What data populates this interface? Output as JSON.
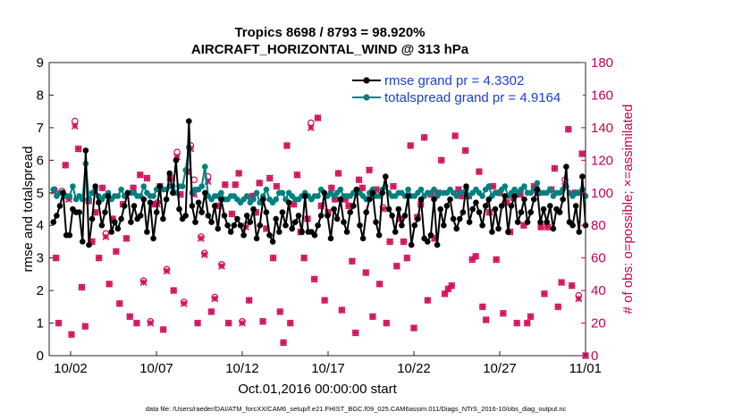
{
  "chart_data": {
    "type": "line",
    "title_line1": "Tropics 8698 / 8793 = 98.920%",
    "title_line2": "AIRCRAFT_HORIZONTAL_WIND @ 313 hPa",
    "xlabel": "Oct.01,2016 00:00:00 start",
    "ylabel_left": "rmse and totalspread",
    "ylabel_right": "# of obs: o=possible; ×=assimilated",
    "footer": "data file: /Users/raeder/DAI/ATM_forcXX/CAM6_setup/f.e21.FHIST_BGC.f09_025.CAM6assim.011/Diags_NTrS_2016-10/obs_diag_output.nc",
    "x_tick_labels": [
      "10/02",
      "10/07",
      "10/12",
      "10/17",
      "10/22",
      "10/27",
      "11/01"
    ],
    "x_tick_days": [
      2,
      7,
      12,
      17,
      22,
      27,
      32
    ],
    "xlim": [
      0.75,
      32.0
    ],
    "ylim_left": [
      0,
      9
    ],
    "yticks_left": [
      "0",
      "1",
      "2",
      "3",
      "4",
      "5",
      "6",
      "7",
      "8",
      "9"
    ],
    "ylim_right": [
      0,
      180
    ],
    "yticks_right": [
      "0",
      "20",
      "40",
      "60",
      "80",
      "100",
      "120",
      "140",
      "160",
      "180"
    ],
    "colors": {
      "rmse": "#000000",
      "spread": "#008080",
      "obs": "#d0105a",
      "legend_text": "#1a3fd6",
      "right_axis": "#c8004f"
    },
    "legend": [
      "rmse grand pr = 4.3302",
      "totalspread grand pr = 4.9164"
    ],
    "series": [
      {
        "name": "rmse",
        "values": [
          4.1,
          4.3,
          4.6,
          5.0,
          3.7,
          3.7,
          4.5,
          4.4,
          4.4,
          3.5,
          6.3,
          3.4,
          4.2,
          5.2,
          4.7,
          4.0,
          4.4,
          4.9,
          3.8,
          4.1,
          3.9,
          4.2,
          4.6,
          5.0,
          4.1,
          4.6,
          4.2,
          4.3,
          4.8,
          3.8,
          4.7,
          3.6,
          4.4,
          5.2,
          4.2,
          4.8,
          5.6,
          5.0,
          6.0,
          4.5,
          4.2,
          4.3,
          7.2,
          4.6,
          4.1,
          4.7,
          4.4,
          5.0,
          4.3,
          4.1,
          4.6,
          3.9,
          4.8,
          4.3,
          4.0,
          3.8,
          4.0,
          4.2,
          4.0,
          3.7,
          4.3,
          4.1,
          4.5,
          3.6,
          4.0,
          4.8,
          4.4,
          3.7,
          3.5,
          4.2,
          3.8,
          4.4,
          4.0,
          4.7,
          3.9,
          4.1,
          4.3,
          3.8,
          4.9,
          3.8,
          3.8,
          3.7,
          4.0,
          4.3,
          5.0,
          4.3,
          3.6,
          4.5,
          4.2,
          4.8,
          4.1,
          3.8,
          4.4,
          4.6,
          5.1,
          4.0,
          3.6,
          4.4,
          4.8,
          5.0,
          4.1,
          3.7,
          5.0,
          5.5,
          4.5,
          4.3,
          3.8,
          4.5,
          4.0,
          4.3,
          4.9,
          3.4,
          4.0,
          4.2,
          4.8,
          3.6,
          3.5,
          3.7,
          4.8,
          3.4,
          4.5,
          4.0,
          4.6,
          4.8,
          4.2,
          3.9,
          4.2,
          4.4,
          5.2,
          4.1,
          4.5,
          4.7,
          4.4,
          4.0,
          4.6,
          4.8,
          3.8,
          4.5,
          3.9,
          4.6,
          4.9,
          3.8,
          4.6,
          4.9,
          4.1,
          4.4,
          4.8,
          4.1,
          4.4,
          4.8,
          5.1,
          4.1,
          4.5,
          4.1,
          4.6,
          3.9,
          4.5,
          4.4,
          4.8,
          5.8,
          4.1,
          4.0,
          4.6,
          3.8,
          5.5,
          4.0
        ]
      },
      {
        "name": "totalspread",
        "values": [
          5.1,
          4.9,
          5.0,
          5.0,
          4.9,
          4.9,
          5.2,
          4.8,
          4.9,
          4.8,
          5.9,
          4.8,
          5.0,
          5.1,
          4.9,
          4.8,
          4.9,
          5.0,
          4.8,
          4.9,
          4.9,
          5.1,
          4.9,
          5.0,
          5.0,
          5.0,
          4.9,
          4.9,
          5.2,
          5.0,
          4.9,
          4.9,
          5.1,
          5.2,
          5.1,
          5.1,
          5.2,
          5.2,
          5.0,
          5.2,
          5.2,
          5.7,
          6.4,
          5.0,
          5.1,
          5.1,
          5.2,
          5.8,
          4.9,
          4.8,
          4.9,
          4.9,
          5.0,
          4.8,
          4.8,
          4.9,
          4.9,
          4.8,
          4.7,
          4.8,
          4.9,
          4.7,
          4.8,
          5.0,
          4.7,
          4.9,
          5.1,
          4.8,
          4.7,
          4.8,
          5.0,
          5.0,
          4.8,
          5.0,
          4.9,
          4.8,
          4.8,
          4.9,
          5.0,
          4.9,
          4.8,
          4.9,
          4.9,
          5.1,
          5.0,
          4.9,
          5.0,
          4.9,
          5.0,
          5.1,
          4.9,
          4.9,
          4.9,
          5.0,
          5.1,
          5.0,
          4.9,
          4.8,
          5.0,
          5.1,
          4.9,
          4.9,
          5.1,
          5.2,
          5.0,
          4.9,
          4.9,
          5.0,
          5.0,
          4.9,
          5.1,
          4.9,
          4.9,
          5.0,
          5.1,
          4.9,
          5.0,
          5.0,
          5.1,
          4.9,
          5.0,
          5.0,
          5.0,
          5.1,
          5.0,
          4.9,
          5.0,
          5.0,
          5.1,
          4.9,
          5.0,
          5.1,
          5.0,
          4.9,
          5.1,
          5.2,
          4.9,
          5.0,
          5.0,
          5.1,
          5.2,
          4.9,
          5.0,
          5.1,
          5.0,
          5.1,
          5.2,
          5.0,
          5.0,
          5.1,
          5.3,
          5.0,
          5.0,
          5.0,
          5.1,
          4.9,
          5.0,
          5.0,
          5.1,
          5.2,
          5.0,
          4.9,
          5.0,
          5.0,
          5.1,
          4.9
        ]
      }
    ],
    "obs_counts": [
      {
        "day": 1.05,
        "o": 102,
        "x": 101
      },
      {
        "day": 1.15,
        "o": 60,
        "x": 60
      },
      {
        "day": 1.3,
        "o": 20,
        "x": 20
      },
      {
        "day": 1.5,
        "o": 101,
        "x": 100
      },
      {
        "day": 1.7,
        "o": 117,
        "x": 117
      },
      {
        "day": 1.9,
        "o": 97,
        "x": 96
      },
      {
        "day": 2.05,
        "o": 13,
        "x": 13
      },
      {
        "day": 2.25,
        "o": 144,
        "x": 141
      },
      {
        "day": 2.45,
        "o": 127,
        "x": 127
      },
      {
        "day": 2.65,
        "o": 42,
        "x": 42
      },
      {
        "day": 2.85,
        "o": 18,
        "x": 18
      },
      {
        "day": 3.05,
        "o": 95,
        "x": 95
      },
      {
        "day": 3.25,
        "o": 70,
        "x": 70
      },
      {
        "day": 3.45,
        "o": 88,
        "x": 88
      },
      {
        "day": 3.65,
        "o": 60,
        "x": 60
      },
      {
        "day": 3.85,
        "o": 103,
        "x": 103
      },
      {
        "day": 4.05,
        "o": 75,
        "x": 73
      },
      {
        "day": 4.25,
        "o": 44,
        "x": 44
      },
      {
        "day": 4.45,
        "o": 84,
        "x": 84
      },
      {
        "day": 4.65,
        "o": 64,
        "x": 64
      },
      {
        "day": 4.85,
        "o": 32,
        "x": 32
      },
      {
        "day": 5.05,
        "o": 93,
        "x": 93
      },
      {
        "day": 5.25,
        "o": 72,
        "x": 72
      },
      {
        "day": 5.45,
        "o": 24,
        "x": 24
      },
      {
        "day": 5.65,
        "o": 103,
        "x": 103
      },
      {
        "day": 5.85,
        "o": 20,
        "x": 20
      },
      {
        "day": 6.05,
        "o": 111,
        "x": 111
      },
      {
        "day": 6.25,
        "o": 46,
        "x": 45
      },
      {
        "day": 6.45,
        "o": 109,
        "x": 109
      },
      {
        "day": 6.65,
        "o": 21,
        "x": 20
      },
      {
        "day": 6.85,
        "o": 93,
        "x": 93
      },
      {
        "day": 7.05,
        "o": 94,
        "x": 93
      },
      {
        "day": 7.2,
        "o": 104,
        "x": 104
      },
      {
        "day": 7.4,
        "o": 16,
        "x": 16
      },
      {
        "day": 7.6,
        "o": 53,
        "x": 52
      },
      {
        "day": 7.8,
        "o": 109,
        "x": 109
      },
      {
        "day": 8.0,
        "o": 40,
        "x": 40
      },
      {
        "day": 8.2,
        "o": 125,
        "x": 122
      },
      {
        "day": 8.4,
        "o": 99,
        "x": 99
      },
      {
        "day": 8.6,
        "o": 33,
        "x": 32
      },
      {
        "day": 8.8,
        "o": 113,
        "x": 113
      },
      {
        "day": 9.0,
        "o": 129,
        "x": 127
      },
      {
        "day": 9.2,
        "o": 108,
        "x": 99
      },
      {
        "day": 9.4,
        "o": 20,
        "x": 20
      },
      {
        "day": 9.6,
        "o": 73,
        "x": 72
      },
      {
        "day": 9.8,
        "o": 63,
        "x": 62
      },
      {
        "day": 10.0,
        "o": 110,
        "x": 107
      },
      {
        "day": 10.2,
        "o": 27,
        "x": 27
      },
      {
        "day": 10.4,
        "o": 36,
        "x": 35
      },
      {
        "day": 10.6,
        "o": 92,
        "x": 92
      },
      {
        "day": 10.8,
        "o": 56,
        "x": 55
      },
      {
        "day": 11.0,
        "o": 105,
        "x": 105
      },
      {
        "day": 11.2,
        "o": 20,
        "x": 20
      },
      {
        "day": 11.4,
        "o": 87,
        "x": 87
      },
      {
        "day": 11.6,
        "o": 105,
        "x": 105
      },
      {
        "day": 11.8,
        "o": 112,
        "x": 112
      },
      {
        "day": 12.0,
        "o": 21,
        "x": 20
      },
      {
        "day": 12.2,
        "o": 80,
        "x": 79
      },
      {
        "day": 12.4,
        "o": 34,
        "x": 34
      },
      {
        "day": 12.6,
        "o": 98,
        "x": 98
      },
      {
        "day": 12.8,
        "o": 88,
        "x": 88
      },
      {
        "day": 13.0,
        "o": 106,
        "x": 106
      },
      {
        "day": 13.2,
        "o": 21,
        "x": 21
      },
      {
        "day": 13.4,
        "o": 78,
        "x": 78
      },
      {
        "day": 13.6,
        "o": 109,
        "x": 109
      },
      {
        "day": 13.8,
        "o": 60,
        "x": 60
      },
      {
        "day": 14.0,
        "o": 104,
        "x": 104
      },
      {
        "day": 14.2,
        "o": 27,
        "x": 27
      },
      {
        "day": 14.4,
        "o": 8,
        "x": 8
      },
      {
        "day": 14.6,
        "o": 129,
        "x": 129
      },
      {
        "day": 14.8,
        "o": 20,
        "x": 20
      },
      {
        "day": 15.0,
        "o": 93,
        "x": 93
      },
      {
        "day": 15.2,
        "o": 111,
        "x": 111
      },
      {
        "day": 15.4,
        "o": 76,
        "x": 76
      },
      {
        "day": 15.6,
        "o": 60,
        "x": 60
      },
      {
        "day": 15.8,
        "o": 84,
        "x": 84
      },
      {
        "day": 16.0,
        "o": 143,
        "x": 140
      },
      {
        "day": 16.2,
        "o": 47,
        "x": 47
      },
      {
        "day": 16.4,
        "o": 146,
        "x": 146
      },
      {
        "day": 16.6,
        "o": 92,
        "x": 92
      },
      {
        "day": 16.8,
        "o": 34,
        "x": 34
      },
      {
        "day": 17.0,
        "o": 88,
        "x": 88
      },
      {
        "day": 17.2,
        "o": 103,
        "x": 103
      },
      {
        "day": 17.4,
        "o": 96,
        "x": 96
      },
      {
        "day": 17.6,
        "o": 112,
        "x": 112
      },
      {
        "day": 17.8,
        "o": 28,
        "x": 28
      },
      {
        "day": 18.0,
        "o": 96,
        "x": 96
      },
      {
        "day": 18.2,
        "o": 92,
        "x": 92
      },
      {
        "day": 18.4,
        "o": 58,
        "x": 58
      },
      {
        "day": 18.6,
        "o": 14,
        "x": 14
      },
      {
        "day": 18.8,
        "o": 108,
        "x": 108
      },
      {
        "day": 19.0,
        "o": 103,
        "x": 103
      },
      {
        "day": 19.2,
        "o": 51,
        "x": 51
      },
      {
        "day": 19.4,
        "o": 114,
        "x": 114
      },
      {
        "day": 19.6,
        "o": 24,
        "x": 24
      },
      {
        "day": 19.8,
        "o": 102,
        "x": 102
      },
      {
        "day": 20.0,
        "o": 44,
        "x": 44
      },
      {
        "day": 20.2,
        "o": 91,
        "x": 90
      },
      {
        "day": 20.4,
        "o": 20,
        "x": 20
      },
      {
        "day": 20.6,
        "o": 70,
        "x": 70
      },
      {
        "day": 20.8,
        "o": 104,
        "x": 104
      },
      {
        "day": 21.0,
        "o": 55,
        "x": 55
      },
      {
        "day": 21.2,
        "o": 84,
        "x": 84
      },
      {
        "day": 21.4,
        "o": 70,
        "x": 70
      },
      {
        "day": 21.6,
        "o": 60,
        "x": 60
      },
      {
        "day": 21.8,
        "o": 129,
        "x": 129
      },
      {
        "day": 22.0,
        "o": 17,
        "x": 17
      },
      {
        "day": 22.2,
        "o": 85,
        "x": 85
      },
      {
        "day": 22.4,
        "o": 93,
        "x": 93
      },
      {
        "day": 22.6,
        "o": 134,
        "x": 134
      },
      {
        "day": 22.8,
        "o": 34,
        "x": 34
      },
      {
        "day": 23.0,
        "o": 99,
        "x": 99
      },
      {
        "day": 23.2,
        "o": 72,
        "x": 72
      },
      {
        "day": 23.4,
        "o": 100,
        "x": 100
      },
      {
        "day": 23.6,
        "o": 120,
        "x": 120
      },
      {
        "day": 23.8,
        "o": 38,
        "x": 38
      },
      {
        "day": 24.0,
        "o": 41,
        "x": 41
      },
      {
        "day": 24.2,
        "o": 43,
        "x": 43
      },
      {
        "day": 24.4,
        "o": 135,
        "x": 135
      },
      {
        "day": 24.6,
        "o": 102,
        "x": 102
      },
      {
        "day": 24.8,
        "o": 98,
        "x": 98
      },
      {
        "day": 25.0,
        "o": 126,
        "x": 126
      },
      {
        "day": 25.2,
        "o": 98,
        "x": 98
      },
      {
        "day": 25.4,
        "o": 59,
        "x": 59
      },
      {
        "day": 25.6,
        "o": 61,
        "x": 61
      },
      {
        "day": 25.8,
        "o": 113,
        "x": 113
      },
      {
        "day": 26.0,
        "o": 30,
        "x": 30
      },
      {
        "day": 26.2,
        "o": 22,
        "x": 22
      },
      {
        "day": 26.4,
        "o": 88,
        "x": 88
      },
      {
        "day": 26.6,
        "o": 104,
        "x": 104
      },
      {
        "day": 26.8,
        "o": 59,
        "x": 59
      },
      {
        "day": 27.0,
        "o": 100,
        "x": 100
      },
      {
        "day": 27.2,
        "o": 26,
        "x": 26
      },
      {
        "day": 27.4,
        "o": 94,
        "x": 94
      },
      {
        "day": 27.6,
        "o": 76,
        "x": 76
      },
      {
        "day": 27.8,
        "o": 97,
        "x": 97
      },
      {
        "day": 28.0,
        "o": 20,
        "x": 20
      },
      {
        "day": 28.2,
        "o": 99,
        "x": 99
      },
      {
        "day": 28.4,
        "o": 80,
        "x": 80
      },
      {
        "day": 28.6,
        "o": 20,
        "x": 20
      },
      {
        "day": 28.8,
        "o": 24,
        "x": 24
      },
      {
        "day": 29.0,
        "o": 104,
        "x": 104
      },
      {
        "day": 29.2,
        "o": 100,
        "x": 100
      },
      {
        "day": 29.4,
        "o": 79,
        "x": 79
      },
      {
        "day": 29.6,
        "o": 38,
        "x": 38
      },
      {
        "day": 29.8,
        "o": 79,
        "x": 79
      },
      {
        "day": 30.0,
        "o": 102,
        "x": 102
      },
      {
        "day": 30.2,
        "o": 115,
        "x": 115
      },
      {
        "day": 30.4,
        "o": 30,
        "x": 30
      },
      {
        "day": 30.6,
        "o": 45,
        "x": 45
      },
      {
        "day": 30.8,
        "o": 108,
        "x": 104
      },
      {
        "day": 31.0,
        "o": 139,
        "x": 139
      },
      {
        "day": 31.2,
        "o": 43,
        "x": 43
      },
      {
        "day": 31.4,
        "o": 100,
        "x": 100
      },
      {
        "day": 31.6,
        "o": 37,
        "x": 35
      },
      {
        "day": 31.8,
        "o": 124,
        "x": 124
      },
      {
        "day": 32.0,
        "o": 0,
        "x": 0
      }
    ]
  }
}
